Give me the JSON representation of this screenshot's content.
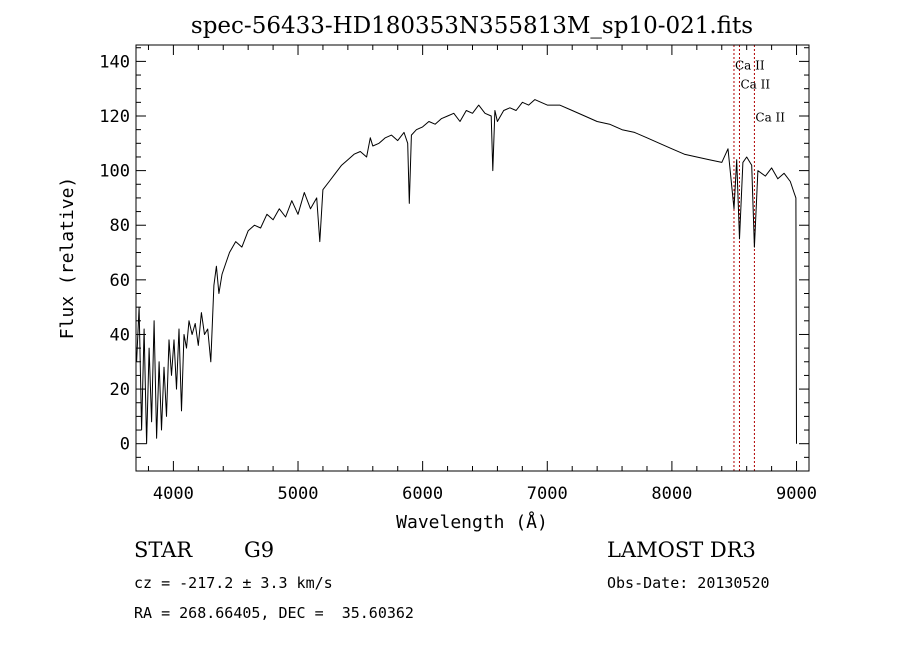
{
  "chart_data": {
    "type": "line",
    "title": "spec-56433-HD180353N355813M_sp10-021.fits",
    "xlabel": "Wavelength (Å)",
    "ylabel": "Flux (relative)",
    "xlim": [
      3700,
      9100
    ],
    "ylim": [
      -10,
      146
    ],
    "xticks": [
      {
        "value": 4000,
        "label": "4000"
      },
      {
        "value": 5000,
        "label": "5000"
      },
      {
        "value": 6000,
        "label": "6000"
      },
      {
        "value": 7000,
        "label": "7000"
      },
      {
        "value": 8000,
        "label": "8000"
      },
      {
        "value": 9000,
        "label": "9000"
      }
    ],
    "yticks": [
      {
        "value": 0,
        "label": "0"
      },
      {
        "value": 20,
        "label": "20"
      },
      {
        "value": 40,
        "label": "40"
      },
      {
        "value": 60,
        "label": "60"
      },
      {
        "value": 80,
        "label": "80"
      },
      {
        "value": 100,
        "label": "100"
      },
      {
        "value": 120,
        "label": "120"
      },
      {
        "value": 140,
        "label": "140"
      }
    ],
    "line_color": "#000000",
    "marker_color": "#b00000",
    "grid": false,
    "series": [
      {
        "x": [
          3705,
          3725,
          3745,
          3765,
          3785,
          3805,
          3825,
          3845,
          3865,
          3885,
          3905,
          3925,
          3945,
          3965,
          3985,
          4005,
          4025,
          4045,
          4065,
          4085,
          4105,
          4125,
          4150,
          4175,
          4200,
          4225,
          4250,
          4275,
          4300,
          4325,
          4345,
          4365,
          4390,
          4420,
          4450,
          4500,
          4550,
          4600,
          4650,
          4700,
          4750,
          4800,
          4850,
          4900,
          4950,
          5000,
          5050,
          5100,
          5150,
          5175,
          5200,
          5250,
          5300,
          5350,
          5400,
          5450,
          5500,
          5550,
          5580,
          5600,
          5650,
          5700,
          5750,
          5800,
          5850,
          5880,
          5893,
          5910,
          5950,
          6000,
          6050,
          6100,
          6150,
          6200,
          6250,
          6300,
          6350,
          6400,
          6450,
          6500,
          6550,
          6563,
          6580,
          6600,
          6650,
          6700,
          6750,
          6800,
          6850,
          6900,
          6950,
          7000,
          7100,
          7200,
          7300,
          7400,
          7500,
          7600,
          7700,
          7800,
          7900,
          8000,
          8100,
          8200,
          8300,
          8400,
          8450,
          8498,
          8520,
          8542,
          8570,
          8600,
          8640,
          8662,
          8690,
          8750,
          8800,
          8850,
          8900,
          8950,
          8980,
          8995,
          9000
        ],
        "y": [
          30,
          50,
          5,
          42,
          0,
          35,
          8,
          45,
          2,
          30,
          5,
          28,
          10,
          38,
          25,
          38,
          20,
          42,
          12,
          40,
          35,
          45,
          40,
          44,
          36,
          48,
          40,
          42,
          30,
          58,
          65,
          55,
          62,
          66,
          70,
          74,
          72,
          78,
          80,
          79,
          84,
          82,
          86,
          83,
          89,
          84,
          92,
          86,
          90,
          74,
          93,
          96,
          99,
          102,
          104,
          106,
          107,
          105,
          112,
          109,
          110,
          112,
          113,
          111,
          114,
          110,
          88,
          113,
          115,
          116,
          118,
          117,
          119,
          120,
          121,
          118,
          122,
          121,
          124,
          121,
          120,
          100,
          122,
          118,
          122,
          123,
          122,
          125,
          124,
          126,
          125,
          124,
          124,
          122,
          120,
          118,
          117,
          115,
          114,
          112,
          110,
          108,
          106,
          105,
          104,
          103,
          108,
          86,
          104,
          75,
          103,
          105,
          102,
          72,
          100,
          98,
          101,
          97,
          99,
          96,
          92,
          90,
          0
        ]
      }
    ],
    "lines": [
      {
        "label": "Ca II",
        "wl": 8498,
        "pos": "right",
        "row": 1
      },
      {
        "label": "Ca II",
        "wl": 8542,
        "pos": "right",
        "row": 2
      },
      {
        "label": "Ca II",
        "wl": 8662,
        "pos": "right",
        "row": 3
      }
    ],
    "line_rows_y": [
      146,
      137,
      130,
      118
    ]
  },
  "footer": {
    "object_type": "STAR",
    "subclass": "G9",
    "release": "LAMOST DR3",
    "cz": "cz = -217.2 ± 3.3 km/s",
    "obs_date": "Obs-Date: 20130520",
    "coords": "RA = 268.66405, DEC =  35.60362"
  }
}
